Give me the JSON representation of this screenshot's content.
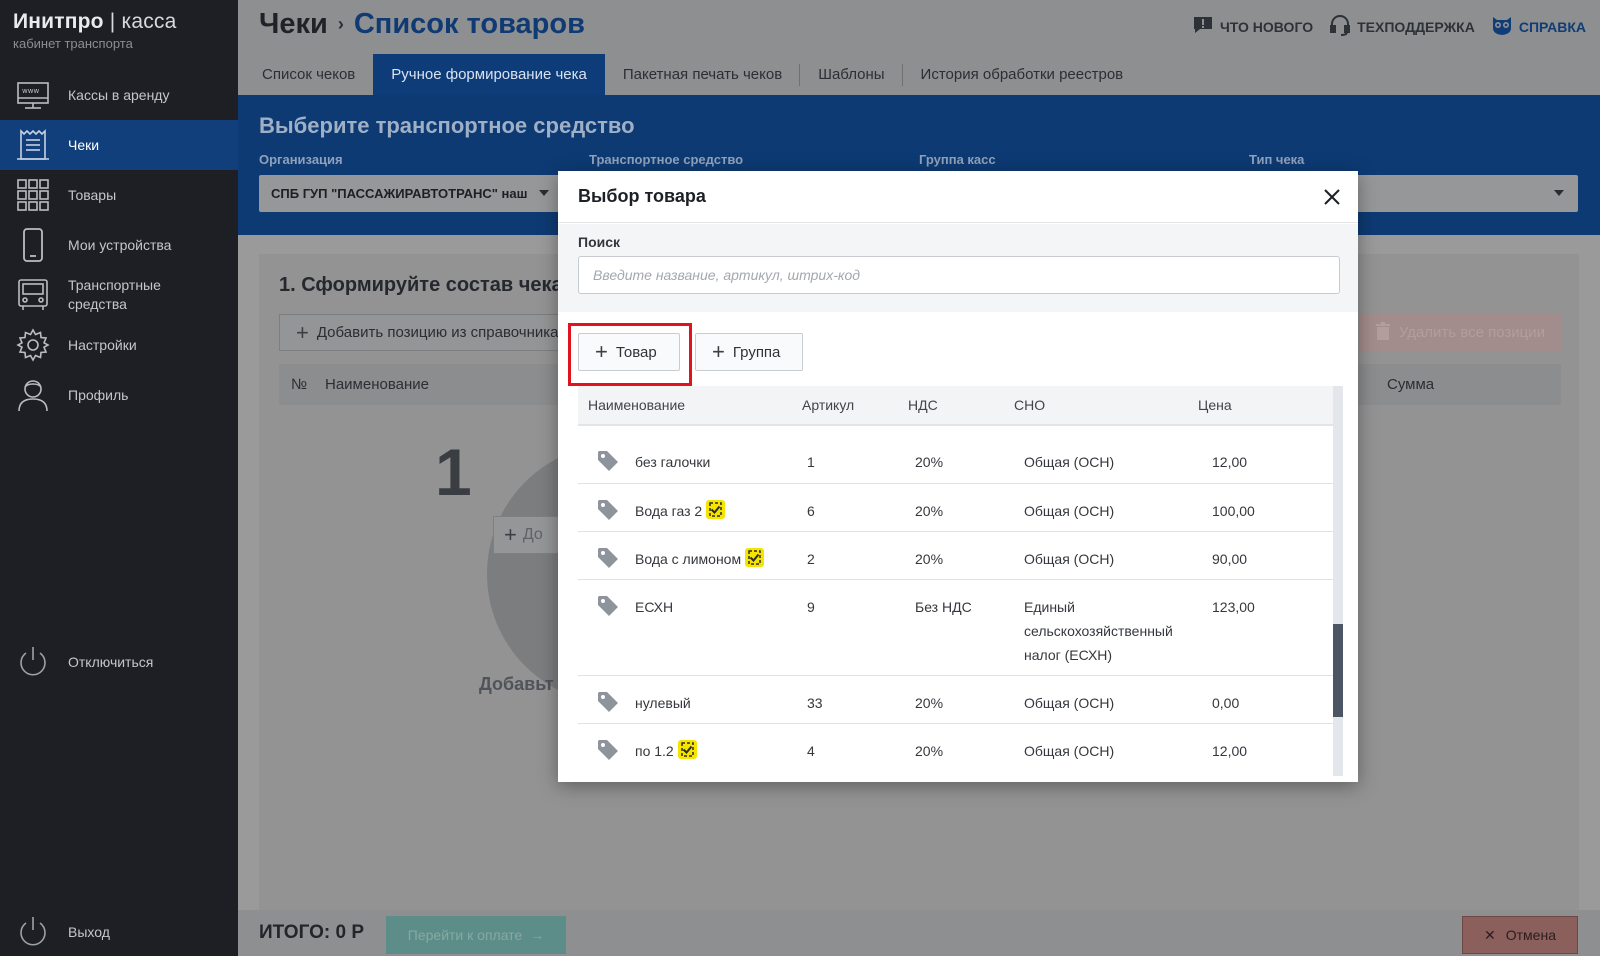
{
  "brand": {
    "title_bold": "Инитпро",
    "title_sep": "|",
    "title_thin": "касса",
    "subtitle": "кабинет транспорта"
  },
  "sidebar": {
    "items": [
      {
        "label": "Кассы в аренду",
        "icon": "www-monitor-icon",
        "active": false
      },
      {
        "label": "Чеки",
        "icon": "receipt-icon",
        "active": true
      },
      {
        "label": "Товары",
        "icon": "grid-icon",
        "active": false
      },
      {
        "label": "Мои устройства",
        "icon": "phone-icon",
        "active": false
      },
      {
        "label": "Транспортные средства",
        "icon": "bus-icon",
        "active": false
      },
      {
        "label": "Настройки",
        "icon": "gear-icon",
        "active": false
      },
      {
        "label": "Профиль",
        "icon": "user-icon",
        "active": false
      }
    ],
    "disconnect_label": "Отключиться",
    "exit_label": "Выход"
  },
  "header": {
    "crumb_root": "Чеки",
    "crumb_sep": "›",
    "crumb_current": "Список товаров",
    "links": {
      "whats_new": "ЧТО НОВОГО",
      "support": "ТЕХПОДДЕРЖКА",
      "help": "СПРАВКА"
    }
  },
  "tabs": [
    {
      "label": "Список чеков",
      "active": false
    },
    {
      "label": "Ручное формирование чека",
      "active": true
    },
    {
      "label": "Пакетная печать чеков",
      "active": false
    },
    {
      "label": "Шаблоны",
      "active": false
    },
    {
      "label": "История обработки реестров",
      "active": false
    }
  ],
  "vehicle_panel": {
    "title": "Выберите транспортное средство",
    "org_label": "Организация",
    "org_value": "СПБ ГУП \"ПАССАЖИРАВТОТРАНС\" наш",
    "vehicle_label": "Транспортное средство",
    "group_label": "Группа касс",
    "type_label": "Тип чека"
  },
  "composition": {
    "title": "1. Сформируйте состав чека",
    "add_from_ref": "Добавить позицию из справочника",
    "delete_all": "Удалить все позиции",
    "col_num": "№",
    "col_name": "Наименование",
    "col_sum": "Сумма",
    "empty_num": "1",
    "empty_add": "До",
    "empty_caption": "Добавьт"
  },
  "footer": {
    "total": "ИТОГО: 0 Р",
    "pay": "Перейти к оплате",
    "cancel": "Отмена"
  },
  "modal": {
    "title": "Выбор товара",
    "search_label": "Поиск",
    "search_placeholder": "Введите название, артикул, штрих-код",
    "search_value": "",
    "btn_product": "Товар",
    "btn_group": "Группа",
    "columns": {
      "name": "Наименование",
      "article": "Артикул",
      "vat": "НДС",
      "sno": "СНО",
      "price": "Цена"
    },
    "rows": [
      {
        "name": "без галочки",
        "badge": false,
        "article": "1",
        "vat": "20%",
        "sno": "Общая (ОСН)",
        "price": "12,00"
      },
      {
        "name": "Вода газ 2",
        "badge": true,
        "article": "6",
        "vat": "20%",
        "sno": "Общая (ОСН)",
        "price": "100,00"
      },
      {
        "name": "Вода с лимоном",
        "badge": true,
        "article": "2",
        "vat": "20%",
        "sno": "Общая (ОСН)",
        "price": "90,00"
      },
      {
        "name": "ЕСХН",
        "badge": false,
        "article": "9",
        "vat": "Без НДС",
        "sno": "Единый сельскохозяйственный налог (ЕСХН)",
        "price": "123,00"
      },
      {
        "name": "нулевый",
        "badge": false,
        "article": "33",
        "vat": "20%",
        "sno": "Общая (ОСН)",
        "price": "0,00"
      },
      {
        "name": "по 1.2",
        "badge": true,
        "article": "4",
        "vat": "20%",
        "sno": "Общая (ОСН)",
        "price": "12,00"
      }
    ]
  },
  "colors": {
    "sidebar_active": "#103f7b",
    "accent_blue": "#0e3c78",
    "highlight_frame": "#e0141f",
    "badge_yellow": "#f5e400"
  }
}
